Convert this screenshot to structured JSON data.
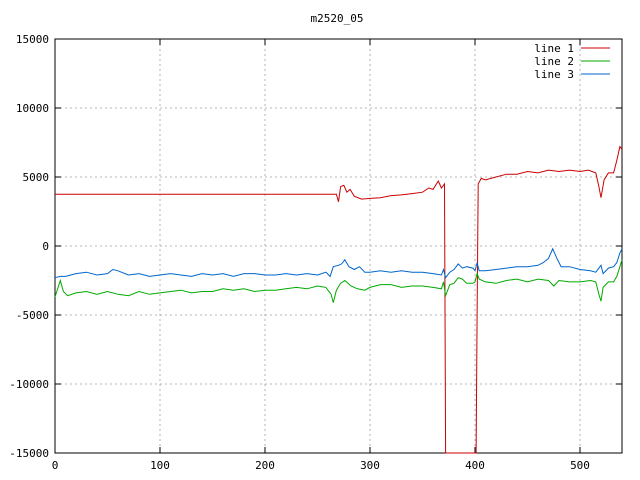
{
  "chart_data": {
    "type": "line",
    "title": "m2520_05",
    "xlabel": "",
    "ylabel": "",
    "xlim": [
      0,
      540
    ],
    "ylim": [
      -15000,
      15000
    ],
    "xticks": [
      0,
      100,
      200,
      300,
      400,
      500
    ],
    "yticks": [
      -15000,
      -10000,
      -5000,
      0,
      5000,
      10000,
      15000
    ],
    "grid": true,
    "legend_position": "top-right",
    "series": [
      {
        "name": "line 1",
        "color": "#cc0000",
        "points": [
          [
            0,
            3750
          ],
          [
            100,
            3750
          ],
          [
            200,
            3750
          ],
          [
            268,
            3750
          ],
          [
            270,
            3200
          ],
          [
            272,
            4300
          ],
          [
            275,
            4400
          ],
          [
            278,
            3900
          ],
          [
            281,
            4100
          ],
          [
            285,
            3600
          ],
          [
            292,
            3400
          ],
          [
            300,
            3450
          ],
          [
            310,
            3500
          ],
          [
            320,
            3650
          ],
          [
            330,
            3700
          ],
          [
            340,
            3800
          ],
          [
            350,
            3900
          ],
          [
            356,
            4200
          ],
          [
            360,
            4100
          ],
          [
            365,
            4700
          ],
          [
            368,
            4200
          ],
          [
            370,
            4400
          ],
          [
            371,
            4500
          ],
          [
            372,
            -15000
          ],
          [
            374,
            -15000
          ],
          [
            384,
            -15000
          ],
          [
            390,
            -15000
          ],
          [
            400,
            -15000
          ],
          [
            401,
            -15000
          ],
          [
            402,
            -5000
          ],
          [
            403,
            4500
          ],
          [
            406,
            4900
          ],
          [
            410,
            4800
          ],
          [
            420,
            5000
          ],
          [
            430,
            5200
          ],
          [
            440,
            5200
          ],
          [
            450,
            5400
          ],
          [
            460,
            5300
          ],
          [
            470,
            5500
          ],
          [
            480,
            5400
          ],
          [
            490,
            5500
          ],
          [
            500,
            5400
          ],
          [
            508,
            5500
          ],
          [
            515,
            5300
          ],
          [
            518,
            4300
          ],
          [
            520,
            3500
          ],
          [
            523,
            4800
          ],
          [
            527,
            5300
          ],
          [
            532,
            5300
          ],
          [
            535,
            6200
          ],
          [
            538,
            7200
          ],
          [
            540,
            7000
          ]
        ]
      },
      {
        "name": "line 2",
        "color": "#00aa00",
        "points": [
          [
            0,
            -3700
          ],
          [
            3,
            -3000
          ],
          [
            5,
            -2500
          ],
          [
            8,
            -3300
          ],
          [
            12,
            -3600
          ],
          [
            20,
            -3400
          ],
          [
            30,
            -3300
          ],
          [
            40,
            -3500
          ],
          [
            50,
            -3300
          ],
          [
            60,
            -3500
          ],
          [
            70,
            -3600
          ],
          [
            80,
            -3300
          ],
          [
            90,
            -3500
          ],
          [
            100,
            -3400
          ],
          [
            110,
            -3300
          ],
          [
            120,
            -3200
          ],
          [
            130,
            -3400
          ],
          [
            140,
            -3300
          ],
          [
            150,
            -3300
          ],
          [
            160,
            -3100
          ],
          [
            170,
            -3200
          ],
          [
            180,
            -3100
          ],
          [
            190,
            -3300
          ],
          [
            200,
            -3200
          ],
          [
            210,
            -3200
          ],
          [
            220,
            -3100
          ],
          [
            230,
            -3000
          ],
          [
            240,
            -3100
          ],
          [
            250,
            -2900
          ],
          [
            258,
            -3000
          ],
          [
            263,
            -3500
          ],
          [
            265,
            -4100
          ],
          [
            268,
            -3200
          ],
          [
            272,
            -2700
          ],
          [
            276,
            -2500
          ],
          [
            282,
            -2900
          ],
          [
            288,
            -3100
          ],
          [
            295,
            -3200
          ],
          [
            300,
            -3000
          ],
          [
            310,
            -2800
          ],
          [
            320,
            -2800
          ],
          [
            330,
            -3000
          ],
          [
            340,
            -2900
          ],
          [
            350,
            -2900
          ],
          [
            360,
            -3000
          ],
          [
            368,
            -3100
          ],
          [
            370,
            -2600
          ],
          [
            372,
            -3600
          ],
          [
            376,
            -2800
          ],
          [
            380,
            -2700
          ],
          [
            384,
            -2300
          ],
          [
            388,
            -2400
          ],
          [
            392,
            -2700
          ],
          [
            398,
            -2700
          ],
          [
            400,
            -2600
          ],
          [
            402,
            -2000
          ],
          [
            404,
            -2400
          ],
          [
            410,
            -2600
          ],
          [
            420,
            -2700
          ],
          [
            430,
            -2500
          ],
          [
            440,
            -2400
          ],
          [
            450,
            -2600
          ],
          [
            460,
            -2400
          ],
          [
            470,
            -2500
          ],
          [
            475,
            -2900
          ],
          [
            480,
            -2500
          ],
          [
            490,
            -2600
          ],
          [
            500,
            -2600
          ],
          [
            510,
            -2500
          ],
          [
            515,
            -2600
          ],
          [
            518,
            -3500
          ],
          [
            520,
            -4000
          ],
          [
            522,
            -3000
          ],
          [
            527,
            -2600
          ],
          [
            532,
            -2600
          ],
          [
            535,
            -2200
          ],
          [
            538,
            -1500
          ],
          [
            540,
            -1000
          ]
        ]
      },
      {
        "name": "line 3",
        "color": "#0066cc",
        "points": [
          [
            0,
            -2300
          ],
          [
            5,
            -2200
          ],
          [
            10,
            -2200
          ],
          [
            20,
            -2000
          ],
          [
            30,
            -1900
          ],
          [
            40,
            -2100
          ],
          [
            50,
            -2000
          ],
          [
            55,
            -1700
          ],
          [
            60,
            -1800
          ],
          [
            70,
            -2100
          ],
          [
            80,
            -2000
          ],
          [
            90,
            -2200
          ],
          [
            100,
            -2100
          ],
          [
            110,
            -2000
          ],
          [
            120,
            -2100
          ],
          [
            130,
            -2200
          ],
          [
            140,
            -2000
          ],
          [
            150,
            -2100
          ],
          [
            160,
            -2000
          ],
          [
            170,
            -2200
          ],
          [
            180,
            -2000
          ],
          [
            190,
            -2000
          ],
          [
            200,
            -2100
          ],
          [
            210,
            -2100
          ],
          [
            220,
            -2000
          ],
          [
            230,
            -2100
          ],
          [
            240,
            -2000
          ],
          [
            250,
            -2100
          ],
          [
            258,
            -1900
          ],
          [
            262,
            -2200
          ],
          [
            265,
            -1500
          ],
          [
            270,
            -1400
          ],
          [
            273,
            -1300
          ],
          [
            276,
            -1000
          ],
          [
            280,
            -1500
          ],
          [
            285,
            -1700
          ],
          [
            290,
            -1500
          ],
          [
            295,
            -1900
          ],
          [
            300,
            -1900
          ],
          [
            310,
            -1800
          ],
          [
            320,
            -1900
          ],
          [
            330,
            -1800
          ],
          [
            340,
            -1900
          ],
          [
            350,
            -1900
          ],
          [
            360,
            -2000
          ],
          [
            368,
            -2100
          ],
          [
            370,
            -1700
          ],
          [
            372,
            -2300
          ],
          [
            376,
            -1900
          ],
          [
            380,
            -1700
          ],
          [
            384,
            -1300
          ],
          [
            388,
            -1600
          ],
          [
            392,
            -1500
          ],
          [
            398,
            -1600
          ],
          [
            400,
            -1800
          ],
          [
            402,
            -1200
          ],
          [
            404,
            -1800
          ],
          [
            410,
            -1800
          ],
          [
            420,
            -1700
          ],
          [
            430,
            -1600
          ],
          [
            440,
            -1500
          ],
          [
            450,
            -1500
          ],
          [
            460,
            -1400
          ],
          [
            465,
            -1200
          ],
          [
            470,
            -900
          ],
          [
            474,
            -200
          ],
          [
            478,
            -900
          ],
          [
            482,
            -1500
          ],
          [
            490,
            -1500
          ],
          [
            500,
            -1700
          ],
          [
            510,
            -1800
          ],
          [
            515,
            -1900
          ],
          [
            518,
            -1600
          ],
          [
            520,
            -1400
          ],
          [
            522,
            -2000
          ],
          [
            527,
            -1600
          ],
          [
            532,
            -1500
          ],
          [
            535,
            -1200
          ],
          [
            538,
            -500
          ],
          [
            540,
            -200
          ]
        ]
      }
    ]
  }
}
